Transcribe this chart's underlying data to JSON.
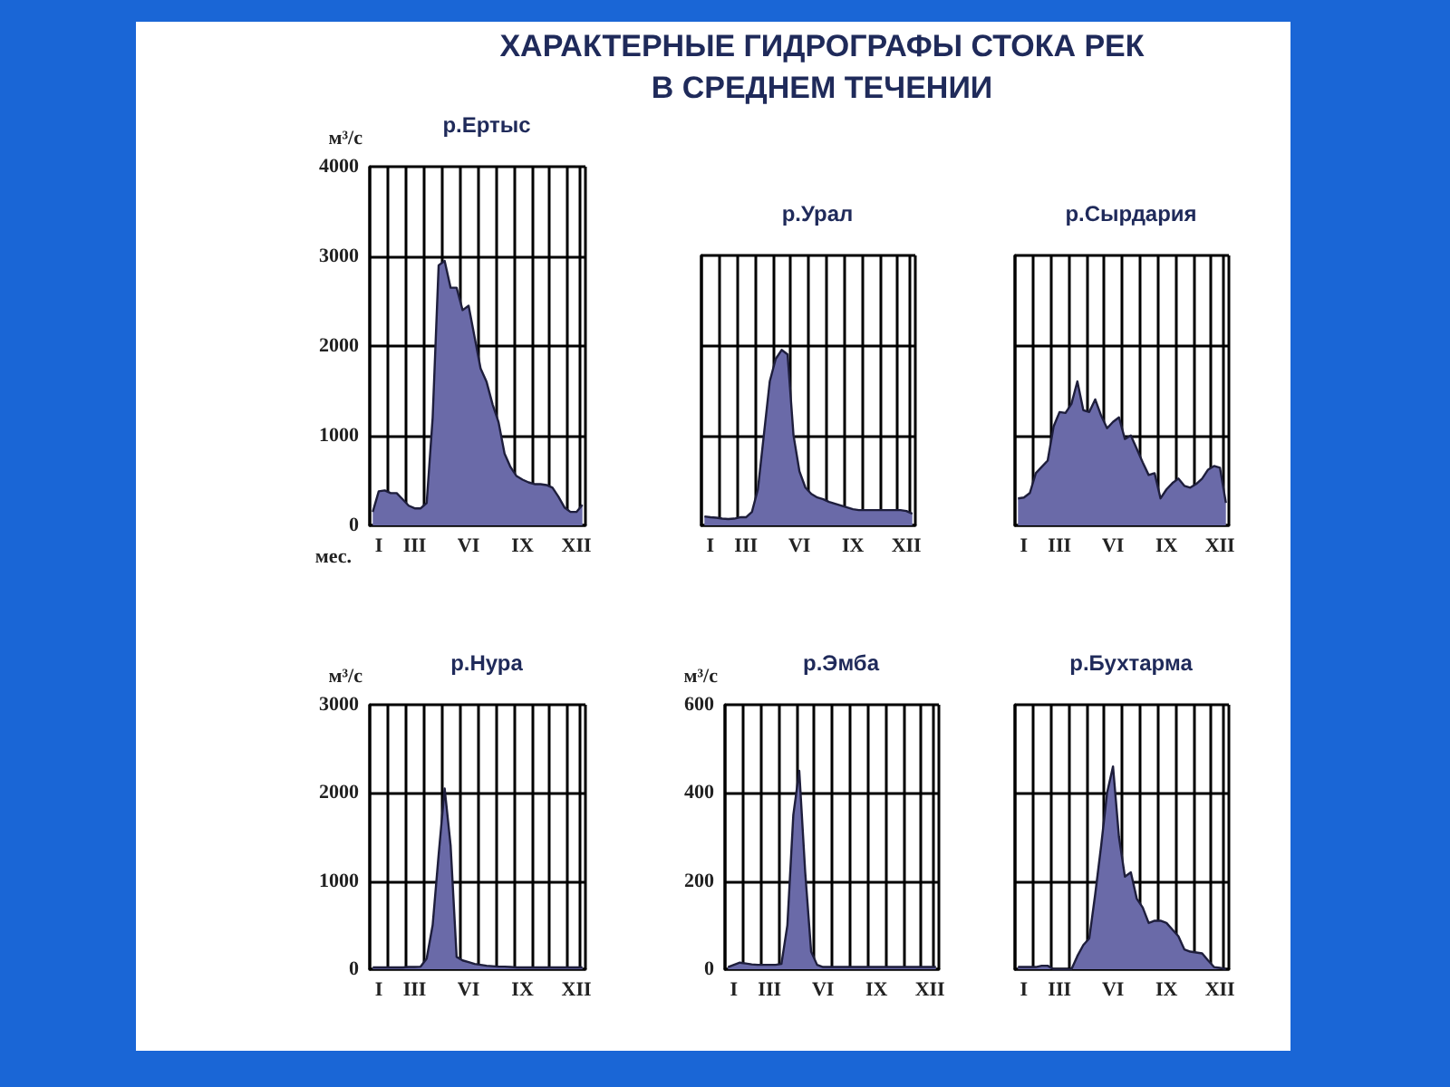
{
  "chart_data": [
    {
      "type": "other",
      "title": "ХАРАКТЕРНЫЕ ГИДРОГРАФЫ СТОКА РЕК\nВ СРЕДНЕМ ТЕЧЕНИИ"
    },
    {
      "type": "area",
      "title": "р.Ертыс",
      "ylabel": "м³/с",
      "xlabel": "мес.",
      "categories": [
        null,
        "I",
        null,
        null,
        null,
        null,
        null,
        "III",
        null,
        null,
        null,
        null,
        null,
        null,
        null,
        null,
        "VI",
        null,
        null,
        null,
        null,
        null,
        null,
        null,
        null,
        "IX",
        null,
        null,
        null,
        null,
        null,
        null,
        null,
        null,
        "XII",
        null
      ],
      "ylim": [
        0,
        4000
      ],
      "yticks": [
        0,
        1000,
        2000,
        3000,
        4000
      ],
      "grid": true,
      "series": [
        {
          "color": "#6a6aa8",
          "values": [
            150,
            380,
            390,
            360,
            360,
            290,
            220,
            190,
            190,
            250,
            1200,
            2900,
            2950,
            2650,
            2650,
            2400,
            2450,
            2100,
            1750,
            1600,
            1350,
            1150,
            800,
            650,
            550,
            510,
            480,
            460,
            460,
            450,
            420,
            320,
            200,
            150,
            150,
            230
          ]
        }
      ]
    },
    {
      "type": "area",
      "title": "р.Урал",
      "categories": [
        null,
        "I",
        null,
        null,
        null,
        null,
        null,
        "III",
        null,
        null,
        null,
        null,
        null,
        null,
        null,
        null,
        "VI",
        null,
        null,
        null,
        null,
        null,
        null,
        null,
        null,
        "IX",
        null,
        null,
        null,
        null,
        null,
        null,
        null,
        null,
        "XII",
        null
      ],
      "ylim": [
        0,
        3000
      ],
      "yticks": [
        0,
        1000,
        2000,
        3000
      ],
      "grid": true,
      "tick_labels": "x",
      "series": [
        {
          "color": "#6a6aa8",
          "values": [
            100,
            90,
            85,
            75,
            70,
            75,
            90,
            90,
            150,
            400,
            1000,
            1600,
            1850,
            1950,
            1900,
            1000,
            600,
            420,
            350,
            310,
            290,
            260,
            240,
            220,
            200,
            180,
            170,
            170,
            170,
            170,
            170,
            170,
            170,
            170,
            160,
            130
          ]
        }
      ]
    },
    {
      "type": "area",
      "title": "р.Сырдария",
      "categories": [
        null,
        "I",
        null,
        null,
        null,
        null,
        null,
        "III",
        null,
        null,
        null,
        null,
        null,
        null,
        null,
        null,
        "VI",
        null,
        null,
        null,
        null,
        null,
        null,
        null,
        null,
        "IX",
        null,
        null,
        null,
        null,
        null,
        null,
        null,
        null,
        "XII",
        null
      ],
      "ylim": [
        0,
        3000
      ],
      "yticks": [
        0,
        1000,
        2000,
        3000
      ],
      "grid": true,
      "tick_labels": "x",
      "series": [
        {
          "color": "#6a6aa8",
          "values": [
            300,
            310,
            360,
            580,
            650,
            720,
            1100,
            1260,
            1250,
            1350,
            1600,
            1280,
            1260,
            1400,
            1220,
            1080,
            1150,
            1200,
            960,
            1000,
            850,
            700,
            560,
            580,
            300,
            400,
            470,
            520,
            440,
            420,
            460,
            520,
            620,
            660,
            640,
            250
          ]
        }
      ]
    },
    {
      "type": "area",
      "title": "р.Нура",
      "ylabel": "м³/с",
      "categories": [
        null,
        "I",
        null,
        null,
        null,
        null,
        null,
        "III",
        null,
        null,
        null,
        null,
        null,
        null,
        null,
        null,
        "VI",
        null,
        null,
        null,
        null,
        null,
        null,
        null,
        null,
        "IX",
        null,
        null,
        null,
        null,
        null,
        null,
        null,
        null,
        "XII",
        null
      ],
      "ylim": [
        0,
        3000
      ],
      "yticks": [
        0,
        1000,
        2000,
        3000
      ],
      "grid": true,
      "series": [
        {
          "color": "#6a6aa8",
          "values": [
            20,
            20,
            20,
            20,
            20,
            20,
            25,
            25,
            30,
            120,
            500,
            1300,
            2050,
            1400,
            140,
            100,
            80,
            60,
            50,
            40,
            35,
            30,
            30,
            25,
            20,
            20,
            20,
            20,
            20,
            20,
            20,
            20,
            20,
            20,
            20,
            20
          ]
        }
      ]
    },
    {
      "type": "area",
      "title": "р.Эмба",
      "ylabel": "м³/с",
      "categories": [
        null,
        "I",
        null,
        null,
        null,
        null,
        null,
        "III",
        null,
        null,
        null,
        null,
        null,
        null,
        null,
        null,
        "VI",
        null,
        null,
        null,
        null,
        null,
        null,
        null,
        null,
        "IX",
        null,
        null,
        null,
        null,
        null,
        null,
        null,
        null,
        "XII",
        null
      ],
      "ylim": [
        0,
        600
      ],
      "yticks": [
        0,
        200,
        400,
        600
      ],
      "grid": true,
      "series": [
        {
          "color": "#6a6aa8",
          "values": [
            5,
            10,
            15,
            13,
            11,
            10,
            10,
            10,
            10,
            12,
            100,
            350,
            450,
            220,
            40,
            10,
            5,
            5,
            5,
            5,
            5,
            5,
            5,
            5,
            5,
            5,
            5,
            5,
            5,
            5,
            5,
            5,
            5,
            5,
            5,
            5
          ]
        }
      ]
    },
    {
      "type": "area",
      "title": "р.Бухтарма",
      "categories": [
        null,
        "I",
        null,
        null,
        null,
        null,
        null,
        "III",
        null,
        null,
        null,
        null,
        null,
        null,
        null,
        null,
        "VI",
        null,
        null,
        null,
        null,
        null,
        null,
        null,
        null,
        "IX",
        null,
        null,
        null,
        null,
        null,
        null,
        null,
        null,
        "XII",
        null
      ],
      "ylim": [
        0,
        600
      ],
      "yticks": [
        0,
        200,
        400,
        600
      ],
      "grid": true,
      "tick_labels": "x",
      "series": [
        {
          "color": "#6a6aa8",
          "values": [
            5,
            5,
            5,
            5,
            8,
            8,
            0,
            0,
            0,
            0,
            30,
            55,
            70,
            170,
            280,
            400,
            460,
            300,
            210,
            220,
            160,
            140,
            105,
            110,
            110,
            105,
            90,
            75,
            45,
            40,
            38,
            36,
            20,
            5,
            3,
            0
          ]
        }
      ]
    }
  ]
}
